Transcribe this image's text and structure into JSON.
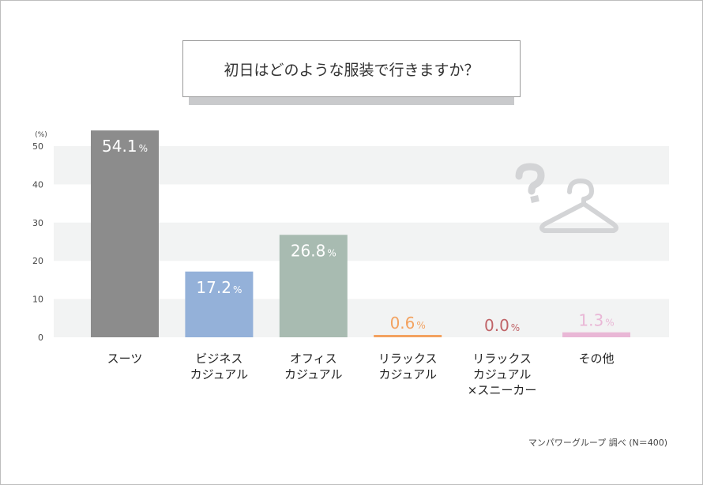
{
  "chart_data": {
    "type": "bar",
    "title": "初日はどのような服装で行きますか？",
    "ylabel": "(%)",
    "ylim": [
      0,
      50
    ],
    "yticks": [
      0,
      10,
      20,
      30,
      40,
      50
    ],
    "grid": "alternating horizontal bands",
    "categories": [
      [
        "スーツ"
      ],
      [
        "ビジネス",
        "カジュアル"
      ],
      [
        "オフィス",
        "カジュアル"
      ],
      [
        "リラックス",
        "カジュアル"
      ],
      [
        "リラックス",
        "カジュアル",
        "×スニーカー"
      ],
      [
        "その他"
      ]
    ],
    "values": [
      54.1,
      17.2,
      26.8,
      0.6,
      0.0,
      1.3
    ],
    "value_labels": [
      "54.1",
      "17.2",
      "26.8",
      "0.6",
      "0.0",
      "1.3"
    ],
    "unit_suffix": "%",
    "colors": [
      "#8c8c8c",
      "#94b1d9",
      "#a8bbb1",
      "#f3a260",
      "#c06468",
      "#e9b7d6"
    ],
    "source": "マンパワーグループ 調べ (N＝400)"
  },
  "decoration": {
    "icon": "hanger-with-question-mark",
    "color": "#d3d4d6"
  }
}
